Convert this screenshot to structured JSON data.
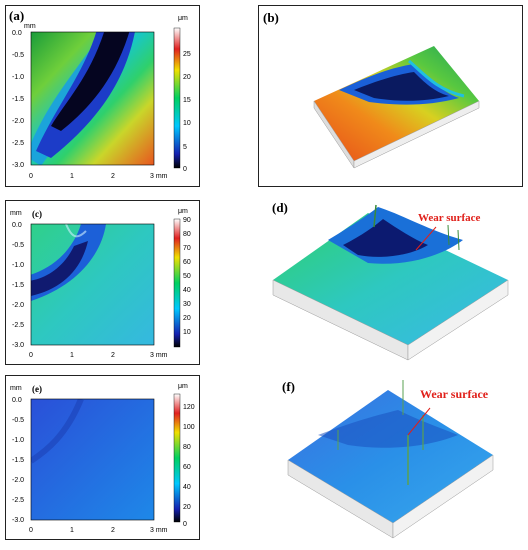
{
  "panels": {
    "a": {
      "label": "(a)",
      "y_unit": "mm",
      "x_unit": "mm",
      "y_ticks": [
        "0.0",
        "-0.5",
        "-1.0",
        "-1.5",
        "-2.0",
        "-2.5",
        "-3.0"
      ],
      "x_ticks": [
        "0",
        "1",
        "2",
        "3 mm"
      ],
      "cb_unit": "μm",
      "cb_ticks": [
        "25",
        "20",
        "15",
        "10",
        "5",
        "0"
      ]
    },
    "b": {
      "label": "(b)"
    },
    "c": {
      "label": "(c)",
      "y_unit": "mm",
      "y_ticks": [
        "0.0",
        "-0.5",
        "-1.0",
        "-1.5",
        "-2.0",
        "-2.5",
        "-3.0"
      ],
      "x_ticks": [
        "0",
        "1",
        "2",
        "3 mm"
      ],
      "cb_unit": "μm",
      "cb_ticks": [
        "90",
        "80",
        "70",
        "60",
        "50",
        "40",
        "30",
        "20",
        "10"
      ]
    },
    "d": {
      "label": "(d)",
      "annotation": "Wear surface"
    },
    "e": {
      "label": "(e)",
      "y_unit": "mm",
      "y_ticks": [
        "0.0",
        "-0.5",
        "-1.0",
        "-1.5",
        "-2.0",
        "-2.5",
        "-3.0"
      ],
      "x_ticks": [
        "0",
        "1",
        "2",
        "3 mm"
      ],
      "cb_unit": "μm",
      "cb_ticks": [
        "120",
        "100",
        "80",
        "60",
        "40",
        "20",
        "0"
      ]
    },
    "f": {
      "label": "(f)",
      "annotation": "Wear surface"
    }
  }
}
